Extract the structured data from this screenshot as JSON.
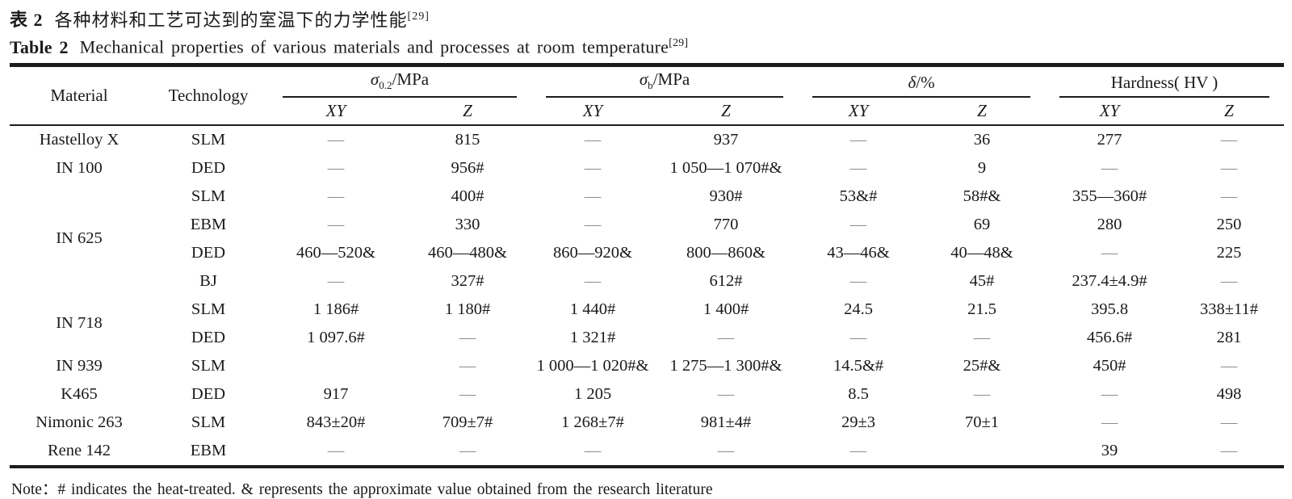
{
  "page": {
    "background": "#ffffff",
    "text_color": "#1a1a1a",
    "rule_color": "#1c1c1c",
    "dash_color": "#8c8c8c"
  },
  "title_cn": {
    "label": "表 2",
    "text": "各种材料和工艺可达到的室温下的力学性能",
    "ref": "[29]"
  },
  "title_en": {
    "label": "Table 2",
    "text": "Mechanical properties of various materials and processes at room temperature",
    "ref": "[29]"
  },
  "table": {
    "material_header": "Material",
    "technology_header": "Technology",
    "groups": [
      {
        "pre": "σ",
        "sub": "0.2",
        "post": "/MPa",
        "italic_pre": true,
        "cols": [
          "XY",
          "Z"
        ]
      },
      {
        "pre": "σ",
        "sub": "b",
        "post": "/MPa",
        "italic_pre": true,
        "cols": [
          "XY",
          "Z"
        ]
      },
      {
        "pre": "δ",
        "sub": "",
        "post": "/%",
        "italic_pre": true,
        "cols": [
          "XY",
          "Z"
        ]
      },
      {
        "pre": "Hardness( HV )",
        "sub": "",
        "post": "",
        "italic_pre": false,
        "cols": [
          "XY",
          "Z"
        ]
      }
    ],
    "rows": [
      {
        "material": "Hastelloy X",
        "rowspan": 1,
        "tech": "SLM",
        "cells": [
          "—",
          "815",
          "—",
          "937",
          "—",
          "36",
          "277",
          "—"
        ]
      },
      {
        "material": "IN 100",
        "rowspan": 1,
        "tech": "DED",
        "cells": [
          "—",
          "956#",
          "—",
          "1 050—1 070#&",
          "—",
          "9",
          "—",
          "—"
        ]
      },
      {
        "material": "IN 625",
        "rowspan": 4,
        "tech": "SLM",
        "cells": [
          "—",
          "400#",
          "—",
          "930#",
          "53&#",
          "58#&",
          "355—360#",
          "—"
        ]
      },
      {
        "material": null,
        "rowspan": 1,
        "tech": "EBM",
        "cells": [
          "—",
          "330",
          "—",
          "770",
          "—",
          "69",
          "280",
          "250"
        ]
      },
      {
        "material": null,
        "rowspan": 1,
        "tech": "DED",
        "cells": [
          "460—520&",
          "460—480&",
          "860—920&",
          "800—860&",
          "43—46&",
          "40—48&",
          "—",
          "225"
        ]
      },
      {
        "material": null,
        "rowspan": 1,
        "tech": "BJ",
        "cells": [
          "—",
          "327#",
          "—",
          "612#",
          "—",
          "45#",
          "237.4±4.9#",
          "—"
        ]
      },
      {
        "material": "IN 718",
        "rowspan": 2,
        "tech": "SLM",
        "cells": [
          "1 186#",
          "1 180#",
          "1 440#",
          "1 400#",
          "24.5",
          "21.5",
          "395.8",
          "338±11#"
        ]
      },
      {
        "material": null,
        "rowspan": 1,
        "tech": "DED",
        "cells": [
          "1 097.6#",
          "—",
          "1 321#",
          "—",
          "—",
          "—",
          "456.6#",
          "281"
        ]
      },
      {
        "material": "IN 939",
        "rowspan": 1,
        "tech": "SLM",
        "cells": [
          "",
          "—",
          "1 000—1 020#&",
          "1 275—1 300#&",
          "14.5&#",
          "25#&",
          "450#",
          "—"
        ]
      },
      {
        "material": "K465",
        "rowspan": 1,
        "tech": "DED",
        "cells": [
          "917",
          "—",
          "1 205",
          "—",
          "8.5",
          "—",
          "—",
          "498"
        ]
      },
      {
        "material": "Nimonic 263",
        "rowspan": 1,
        "tech": "SLM",
        "cells": [
          "843±20#",
          "709±7#",
          "1 268±7#",
          "981±4#",
          "29±3",
          "70±1",
          "—",
          "—"
        ]
      },
      {
        "material": "Rene 142",
        "rowspan": 1,
        "tech": "EBM",
        "cells": [
          "—",
          "—",
          "—",
          "—",
          "—",
          "",
          "39",
          "—"
        ]
      }
    ]
  },
  "note": "Note：# indicates the heat-treated. & represents the approximate value obtained from the research literature"
}
